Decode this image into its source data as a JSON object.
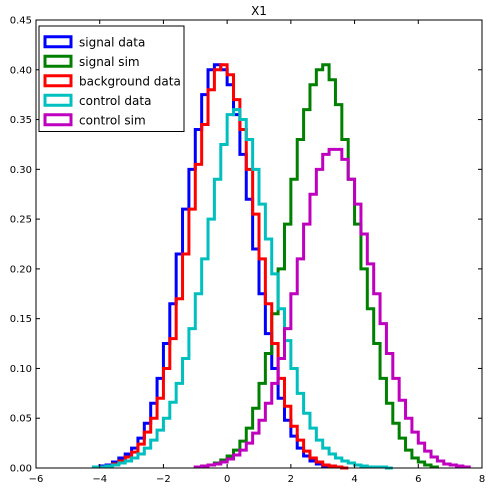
{
  "chart_data": {
    "type": "histogram-step",
    "title": "X1",
    "xlabel": "",
    "ylabel": "",
    "xlim": [
      -6,
      8
    ],
    "ylim": [
      0,
      0.45
    ],
    "xticks": [
      -6,
      -4,
      -2,
      0,
      2,
      4,
      6,
      8
    ],
    "xtick_labels": [
      "−6",
      "−4",
      "−2",
      "0",
      "2",
      "4",
      "6",
      "8"
    ],
    "yticks": [
      0,
      0.05,
      0.1,
      0.15,
      0.2,
      0.25,
      0.3,
      0.35,
      0.4,
      0.45
    ],
    "ytick_labels": [
      "0.00",
      "0.05",
      "0.10",
      "0.15",
      "0.20",
      "0.25",
      "0.30",
      "0.35",
      "0.40",
      "0.45"
    ],
    "grid": false,
    "legend_position": "top-left",
    "series": [
      {
        "name": "signal data",
        "color": "#0000ff",
        "x": [
          -3.9,
          -3.7,
          -3.5,
          -3.3,
          -3.1,
          -2.9,
          -2.7,
          -2.5,
          -2.3,
          -2.1,
          -1.9,
          -1.7,
          -1.5,
          -1.3,
          -1.1,
          -0.9,
          -0.7,
          -0.5,
          -0.3,
          -0.1,
          0.1,
          0.3,
          0.5,
          0.7,
          0.9,
          1.1,
          1.3,
          1.5,
          1.7,
          1.9,
          2.1,
          2.3,
          2.5,
          2.7,
          2.9,
          3.1,
          3.3,
          3.5,
          3.7
        ],
        "y": [
          0.002,
          0.003,
          0.006,
          0.01,
          0.014,
          0.02,
          0.03,
          0.045,
          0.065,
          0.09,
          0.125,
          0.165,
          0.215,
          0.26,
          0.3,
          0.34,
          0.375,
          0.4,
          0.405,
          0.4,
          0.385,
          0.355,
          0.315,
          0.27,
          0.22,
          0.175,
          0.135,
          0.1,
          0.07,
          0.048,
          0.032,
          0.02,
          0.012,
          0.007,
          0.004,
          0.002,
          0.001,
          0.001,
          0.0
        ]
      },
      {
        "name": "signal sim",
        "color": "#008000",
        "x": [
          -0.9,
          -0.7,
          -0.5,
          -0.3,
          -0.1,
          0.1,
          0.3,
          0.5,
          0.7,
          0.9,
          1.1,
          1.3,
          1.5,
          1.7,
          1.9,
          2.1,
          2.3,
          2.5,
          2.7,
          2.9,
          3.1,
          3.3,
          3.5,
          3.7,
          3.9,
          4.1,
          4.3,
          4.5,
          4.7,
          4.9,
          5.1,
          5.3,
          5.5,
          5.7,
          5.9,
          6.1,
          6.3,
          6.5
        ],
        "y": [
          0.001,
          0.002,
          0.003,
          0.005,
          0.008,
          0.012,
          0.018,
          0.027,
          0.04,
          0.06,
          0.085,
          0.115,
          0.155,
          0.2,
          0.245,
          0.29,
          0.33,
          0.36,
          0.385,
          0.4,
          0.405,
          0.39,
          0.365,
          0.33,
          0.29,
          0.245,
          0.2,
          0.16,
          0.125,
          0.09,
          0.065,
          0.045,
          0.03,
          0.018,
          0.01,
          0.006,
          0.003,
          0.001
        ]
      },
      {
        "name": "background data",
        "color": "#ff0000",
        "x": [
          -3.7,
          -3.5,
          -3.3,
          -3.1,
          -2.9,
          -2.7,
          -2.5,
          -2.3,
          -2.1,
          -1.9,
          -1.7,
          -1.5,
          -1.3,
          -1.1,
          -0.9,
          -0.7,
          -0.5,
          -0.3,
          -0.1,
          0.1,
          0.3,
          0.5,
          0.7,
          0.9,
          1.1,
          1.3,
          1.5,
          1.7,
          1.9,
          2.1,
          2.3,
          2.5,
          2.7,
          2.9,
          3.1,
          3.3,
          3.5,
          3.7
        ],
        "y": [
          0.002,
          0.004,
          0.007,
          0.011,
          0.016,
          0.024,
          0.036,
          0.05,
          0.07,
          0.1,
          0.13,
          0.17,
          0.215,
          0.26,
          0.305,
          0.345,
          0.38,
          0.4,
          0.405,
          0.395,
          0.37,
          0.34,
          0.3,
          0.255,
          0.21,
          0.165,
          0.125,
          0.09,
          0.062,
          0.042,
          0.028,
          0.017,
          0.01,
          0.006,
          0.003,
          0.002,
          0.001,
          0.0
        ]
      },
      {
        "name": "control data",
        "color": "#00bfbf",
        "x": [
          -4.1,
          -3.9,
          -3.7,
          -3.5,
          -3.3,
          -3.1,
          -2.9,
          -2.7,
          -2.5,
          -2.3,
          -2.1,
          -1.9,
          -1.7,
          -1.5,
          -1.3,
          -1.1,
          -0.9,
          -0.7,
          -0.5,
          -0.3,
          -0.1,
          0.1,
          0.3,
          0.5,
          0.7,
          0.9,
          1.1,
          1.3,
          1.5,
          1.7,
          1.9,
          2.1,
          2.3,
          2.5,
          2.7,
          2.9,
          3.1,
          3.3,
          3.5,
          3.7,
          3.9,
          4.1,
          4.3,
          4.5,
          4.7,
          4.9,
          5.1
        ],
        "y": [
          0.001,
          0.001,
          0.002,
          0.003,
          0.005,
          0.007,
          0.01,
          0.014,
          0.02,
          0.028,
          0.038,
          0.05,
          0.066,
          0.085,
          0.11,
          0.14,
          0.175,
          0.21,
          0.25,
          0.29,
          0.325,
          0.355,
          0.36,
          0.35,
          0.33,
          0.3,
          0.265,
          0.23,
          0.195,
          0.16,
          0.128,
          0.1,
          0.075,
          0.055,
          0.04,
          0.028,
          0.02,
          0.014,
          0.01,
          0.007,
          0.005,
          0.003,
          0.002,
          0.001,
          0.001,
          0.001,
          0.0
        ]
      },
      {
        "name": "control sim",
        "color": "#bf00bf",
        "x": [
          -0.9,
          -0.7,
          -0.5,
          -0.3,
          -0.1,
          0.1,
          0.3,
          0.5,
          0.7,
          0.9,
          1.1,
          1.3,
          1.5,
          1.7,
          1.9,
          2.1,
          2.3,
          2.5,
          2.7,
          2.9,
          3.1,
          3.3,
          3.5,
          3.7,
          3.9,
          4.1,
          4.3,
          4.5,
          4.7,
          4.9,
          5.1,
          5.3,
          5.5,
          5.7,
          5.9,
          6.1,
          6.3,
          6.5,
          6.7,
          6.9,
          7.1,
          7.3,
          7.5
        ],
        "y": [
          0.001,
          0.002,
          0.003,
          0.004,
          0.006,
          0.009,
          0.013,
          0.018,
          0.025,
          0.035,
          0.048,
          0.065,
          0.085,
          0.11,
          0.14,
          0.175,
          0.21,
          0.245,
          0.275,
          0.3,
          0.315,
          0.32,
          0.32,
          0.31,
          0.29,
          0.265,
          0.235,
          0.205,
          0.175,
          0.145,
          0.115,
          0.09,
          0.068,
          0.05,
          0.036,
          0.025,
          0.017,
          0.011,
          0.007,
          0.004,
          0.003,
          0.002,
          0.001
        ]
      }
    ]
  }
}
